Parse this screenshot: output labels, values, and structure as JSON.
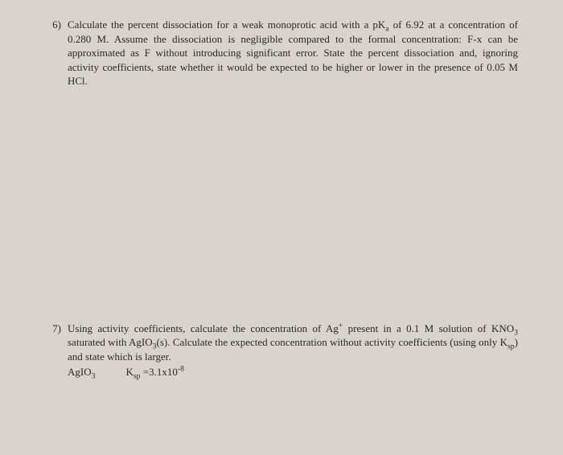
{
  "background_color": "#d8d3cc",
  "text_color": "#2a2a2a",
  "font_family": "Times New Roman",
  "font_size_pt": 10,
  "problems": {
    "p6": {
      "number": "6)",
      "text_parts": {
        "a": "Calculate the percent dissociation for a weak monoprotic acid with a pK",
        "a_sub": "a",
        "b": " of 6.92 at a concentration of 0.280 M. Assume the dissociation is negligible compared to the formal concentration: F-x can be approximated as F without introducing significant error. State the percent dissociation and, ignoring activity coefficients, state whether it would be expected to be higher or lower in the presence of 0.05 M HCl."
      }
    },
    "p7": {
      "number": "7)",
      "text_parts": {
        "a": "Using activity coefficients, calculate the concentration of Ag",
        "a_sup": "+",
        "b": " present in a 0.1 M solution of KNO",
        "b_sub": "3",
        "c": " saturated with AgIO",
        "c_sub": "3",
        "d": "(s). Calculate the expected concentration without activity coefficients (using only K",
        "d_sub": "sp",
        "e": ") and state which is larger."
      },
      "ksp_line": {
        "a": "AgIO",
        "a_sub": "3",
        "gap": " ",
        "b": "K",
        "b_sub": "sp",
        "c": " =3.1x10",
        "c_sup": "-8"
      }
    }
  }
}
